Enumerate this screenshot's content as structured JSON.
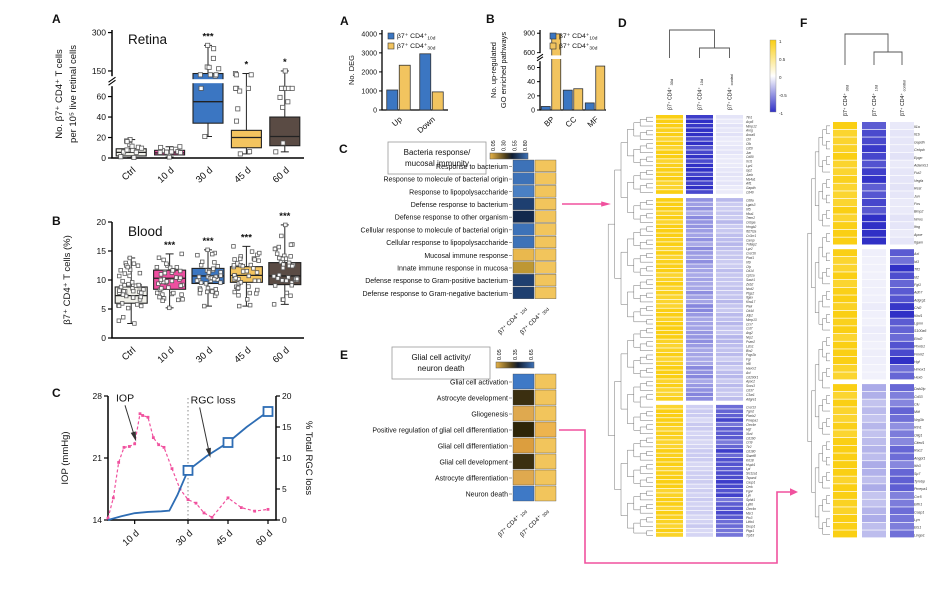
{
  "panels": {
    "left_a": "A",
    "left_b": "B",
    "left_c": "C",
    "mid_a": "A",
    "mid_b": "B",
    "mid_c": "C",
    "mid_e": "E",
    "right_d": "D",
    "right_f": "F"
  },
  "colors": {
    "pink": "#F0519E",
    "blue": "#3B76C2",
    "gold": "#F2C45F",
    "brown": "#5A4B44",
    "ctrl": "#F1F1EA",
    "heat_gold": "#F2C55C",
    "heat_yellow": "#FACF14",
    "heat_blue": "#3030C6",
    "navy_dark": "#1E3F70"
  },
  "chart_data": [
    {
      "id": "retina_box",
      "type": "box",
      "title": "Retina",
      "ylabel": [
        "No. β7⁺ CD4⁺ T cells",
        "per 10⁵ live retinal cells"
      ],
      "categories": [
        "Ctrl",
        "10 d",
        "30 d",
        "45 d",
        "60 d"
      ],
      "box_colors": [
        "#F1F1EA",
        "#EE4FA0",
        "#3B76C2",
        "#F3C45F",
        "#5A4B44"
      ],
      "significance": [
        "",
        "",
        "***",
        "*",
        "*"
      ],
      "y_ticks": [
        0,
        20,
        40,
        60,
        150,
        300
      ],
      "y_segments": [
        {
          "from": 0,
          "to": 70,
          "f0": 0,
          "f1": 0.56
        },
        {
          "from": 130,
          "to": 310,
          "f0": 0.64,
          "f1": 1
        }
      ],
      "axis_break": true,
      "break_cat": 2,
      "boxes": [
        {
          "lo": 0.5,
          "q1": 2,
          "med": 5.5,
          "q3": 9,
          "hi": 18,
          "n": 13
        },
        {
          "lo": 1,
          "q1": 3,
          "med": 5,
          "q3": 7.5,
          "hi": 11,
          "n": 11
        },
        {
          "lo": 21,
          "q1": 34,
          "med": 55,
          "q3": 140,
          "hi": 250,
          "n": 12
        },
        {
          "lo": 4,
          "q1": 10,
          "med": 20,
          "q3": 27,
          "hi": 140,
          "n": 11
        },
        {
          "lo": 6,
          "q1": 12,
          "med": 21,
          "q3": 40,
          "hi": 150,
          "n": 11
        }
      ]
    },
    {
      "id": "blood_box",
      "type": "box",
      "title": "Blood",
      "ylabel": [
        "β7⁺ CD4⁺ T cells (%)"
      ],
      "categories": [
        "Ctrl",
        "10 d",
        "30 d",
        "45 d",
        "60 d"
      ],
      "box_colors": [
        "#F1F1EA",
        "#EE4FA0",
        "#3B76C2",
        "#F3C45F",
        "#5A4B44"
      ],
      "significance": [
        "",
        "***",
        "***",
        "***",
        "***"
      ],
      "y_ticks": [
        0,
        5,
        10,
        15,
        20
      ],
      "y_segments": [
        {
          "from": 0,
          "to": 20,
          "f0": 0,
          "f1": 1
        }
      ],
      "axis_break": false,
      "boxes": [
        {
          "lo": 2.5,
          "q1": 6,
          "med": 7.3,
          "q3": 8.8,
          "hi": 13.8,
          "n": 45
        },
        {
          "lo": 5.2,
          "q1": 8.4,
          "med": 10.3,
          "q3": 11.7,
          "hi": 14.5,
          "n": 42
        },
        {
          "lo": 5.5,
          "q1": 9.4,
          "med": 10.7,
          "q3": 12.0,
          "hi": 15.2,
          "n": 40
        },
        {
          "lo": 5.5,
          "q1": 9.6,
          "med": 10.8,
          "q3": 12.3,
          "hi": 15.8,
          "n": 42
        },
        {
          "lo": 5.8,
          "q1": 9.2,
          "med": 10.7,
          "q3": 13.0,
          "hi": 19.5,
          "n": 40
        }
      ]
    },
    {
      "id": "iop_line",
      "type": "line",
      "left_ylabel": "IOP (mmHg)",
      "right_ylabel": "% Total RGC loss",
      "left_ticks": [
        14,
        21,
        28
      ],
      "right_ticks": [
        0,
        5,
        10,
        15,
        20
      ],
      "left_range": [
        14,
        28
      ],
      "right_range": [
        0,
        20
      ],
      "x_range": [
        0,
        63
      ],
      "vline_x": 30,
      "x_ticks": [
        {
          "x": 10,
          "label": "10 d"
        },
        {
          "x": 30,
          "label": "30 d"
        },
        {
          "x": 45,
          "label": "45 d"
        },
        {
          "x": 60,
          "label": "60 d"
        }
      ],
      "series": [
        {
          "name": "IOP",
          "axis": "left",
          "color": "#F0519E",
          "dash": "3,2.2",
          "points": [
            [
              0,
              14.2
            ],
            [
              2,
              16.5
            ],
            [
              4,
              20.5
            ],
            [
              6,
              22.2
            ],
            [
              8,
              22.3
            ],
            [
              10,
              22.6
            ],
            [
              12,
              26.0
            ],
            [
              13,
              25.8
            ],
            [
              15,
              25.6
            ],
            [
              17,
              23.3
            ],
            [
              19,
              22.5
            ],
            [
              21,
              22.2
            ],
            [
              24,
              19.8
            ],
            [
              27,
              17.5
            ],
            [
              30,
              16.3
            ],
            [
              33,
              15.9
            ],
            [
              36,
              14.8
            ],
            [
              39,
              14.3
            ],
            [
              45,
              16.5
            ],
            [
              50,
              15.4
            ],
            [
              55,
              15.0
            ],
            [
              60,
              15.2
            ]
          ]
        },
        {
          "name": "RGC loss",
          "axis": "right",
          "color": "#2E6DB4",
          "dash": "",
          "points": [
            [
              0,
              0
            ],
            [
              5,
              0.6
            ],
            [
              10,
              1.1
            ],
            [
              15,
              1.3
            ],
            [
              20,
              1.4
            ],
            [
              23,
              1.5
            ],
            [
              26,
              4.0
            ],
            [
              30,
              8.0
            ],
            [
              37,
              10.3
            ],
            [
              45,
              12.5
            ],
            [
              52,
              15.0
            ],
            [
              60,
              17.5
            ]
          ],
          "marker_points": [
            [
              30,
              8.0
            ],
            [
              45,
              12.5
            ],
            [
              60,
              17.5
            ]
          ]
        }
      ],
      "annotations": [
        {
          "text": "IOP",
          "axis": "left",
          "tx": 3,
          "ty": 27.4,
          "ax": 10,
          "ay": 23.4
        },
        {
          "text": "RGC loss",
          "axis": "right",
          "tx": 31,
          "ty": 18.8,
          "ax": 38,
          "ay": 10.8
        }
      ]
    },
    {
      "id": "deg_bar",
      "type": "bar",
      "ylabel": [
        "No. DEG"
      ],
      "categories": [
        "Up",
        "Down"
      ],
      "y_ticks": [
        0,
        1000,
        2000,
        3000,
        4000
      ],
      "y_segments": [
        {
          "from": 0,
          "to": 4200,
          "f0": 0,
          "f1": 1
        }
      ],
      "axis_break": false,
      "series": [
        {
          "base": "β7⁺ CD4⁺",
          "sub": "10d",
          "color": "#3B76C2",
          "values": [
            1050,
            2950
          ]
        },
        {
          "base": "β7⁺ CD4⁺",
          "sub": "30d",
          "color": "#F2C45F",
          "values": [
            2350,
            950
          ]
        }
      ]
    },
    {
      "id": "go_bar",
      "type": "bar",
      "ylabel": [
        "No. up-regulated",
        "GO enriched pathways"
      ],
      "categories": [
        "BP",
        "CC",
        "MF"
      ],
      "y_ticks": [
        0,
        20,
        40,
        60,
        600,
        900
      ],
      "y_segments": [
        {
          "from": 0,
          "to": 70,
          "f0": 0,
          "f1": 0.62
        },
        {
          "from": 580,
          "to": 950,
          "f0": 0.7,
          "f1": 1
        }
      ],
      "axis_break": true,
      "series": [
        {
          "base": "β7⁺ CD4⁺",
          "sub": "10d",
          "color": "#3B76C2",
          "values": [
            5,
            28,
            10
          ]
        },
        {
          "base": "β7⁺ CD4⁺",
          "sub": "30d",
          "color": "#F2C45F",
          "values": [
            890,
            30,
            62
          ]
        }
      ]
    },
    {
      "id": "bacteria_heat",
      "type": "heatmap",
      "title": [
        "Bacteria response/",
        "mucosal immunity"
      ],
      "colorbar": {
        "ticks": [
          "0.05",
          "0.30",
          "0.55",
          "0.80"
        ]
      },
      "columns": [
        {
          "base": "β7⁺ CD4⁺",
          "sub": "10d"
        },
        {
          "base": "β7⁺ CD4⁺",
          "sub": "30d"
        }
      ],
      "rows": [
        {
          "label": "Response to bacterium",
          "colors": [
            "#3D72B8",
            "#F2C55C"
          ]
        },
        {
          "label": "Response to molecule of bacterial origin",
          "colors": [
            "#3D72B8",
            "#F2C55C"
          ]
        },
        {
          "label": "Response to lipopolysaccharide",
          "colors": [
            "#4A80C4",
            "#F2C55C"
          ]
        },
        {
          "label": "Defense response to bacterium",
          "colors": [
            "#1E3F70",
            "#F2C55C"
          ]
        },
        {
          "label": "Defense response to other organism",
          "colors": [
            "#13294D",
            "#F2C55C"
          ]
        },
        {
          "label": "Cellular response to molecule of bacterial origin",
          "colors": [
            "#3D72B8",
            "#F2C55C"
          ]
        },
        {
          "label": "Cellular response to lipopolysaccharide",
          "colors": [
            "#3D72B8",
            "#F2C55C"
          ]
        },
        {
          "label": "Mucosal immune response",
          "colors": [
            "#E9B84E",
            "#F2C55C"
          ]
        },
        {
          "label": "Innate immune response in mucosa",
          "colors": [
            "#BE9733",
            "#F2C55C"
          ]
        },
        {
          "label": "Defense response to Gram-positive bacterium",
          "colors": [
            "#1E3F70",
            "#F2C55C"
          ]
        },
        {
          "label": "Defense response to Gram-negative bacterium",
          "colors": [
            "#1E3F70",
            "#F2C55C"
          ]
        }
      ]
    },
    {
      "id": "glial_heat",
      "type": "heatmap",
      "title": [
        "Glial cell activity/",
        "neuron death"
      ],
      "colorbar": {
        "ticks": [
          "0.05",
          "0.35",
          "0.65"
        ]
      },
      "columns": [
        {
          "base": "β7⁺ CD4⁺",
          "sub": "10d"
        },
        {
          "base": "β7⁺ CD4⁺",
          "sub": "30d"
        }
      ],
      "rows": [
        {
          "label": "Glial cell activation",
          "colors": [
            "#3E79C6",
            "#F2C55C"
          ]
        },
        {
          "label": "Astrocyte development",
          "colors": [
            "#3B2F10",
            "#F2C55C"
          ]
        },
        {
          "label": "Gliogenesis",
          "colors": [
            "#DFA94F",
            "#F2C55C"
          ]
        },
        {
          "label": "Positive regulation of glial cell differentiation",
          "colors": [
            "#2E2508",
            "#EDB44E"
          ]
        },
        {
          "label": "Glial cell differentiation",
          "colors": [
            "#DC9E3E",
            "#F2C55C"
          ]
        },
        {
          "label": "Glial cell development",
          "colors": [
            "#3B2F10",
            "#F2C55C"
          ]
        },
        {
          "label": "Astrocyte differentiation",
          "colors": [
            "#DFA94F",
            "#F2C55C"
          ]
        },
        {
          "label": "Neuron death",
          "colors": [
            "#3E79C6",
            "#F2C55C"
          ]
        }
      ]
    },
    {
      "id": "heat_d",
      "type": "gene-heatmap",
      "columns": [
        {
          "base": "β7⁺ CD4⁺",
          "sub": "30d"
        },
        {
          "base": "β7⁺ CD4⁺",
          "sub": "10d"
        },
        {
          "base": "β7⁺ CD4⁺",
          "sub": "control"
        }
      ],
      "colorbar": {
        "ticks": [
          "1",
          "0.5",
          "0",
          "-0.5",
          "-1"
        ]
      },
      "blocks": [
        {
          "values": [
            0.95,
            -1,
            -0.12
          ],
          "genes": [
            "Tln1",
            "Acp5",
            "Mmp12",
            "Areg",
            "Anxa5",
            "Ctrl",
            "Cfb",
            "Cd5l",
            "Jun",
            "Cd80",
            "Xcl1",
            "Lyz1",
            "Gp2",
            "Junb",
            "Ms4a1",
            "Aif1",
            "Gapdh",
            "Cd40"
          ]
        },
        {
          "values": [
            0.95,
            -0.5,
            -0.3
          ],
          "genes": [
            "Cd8a",
            "Lgals3",
            "Irf5",
            "Hba1",
            "Trem2",
            "Cebpa",
            "Hmgb2",
            "Ifi27l2a",
            "Cx3cr1",
            "Camp",
            "Tnfaip2",
            "Lyz2",
            "Cxcl16",
            "Plcd1",
            "Irf9",
            "Cfp",
            "Cd14",
            "Cpt1a",
            "Sash1",
            "Zeb2",
            "Nod2",
            "Ptgs2",
            "Itgax",
            "Klra17",
            "Plek",
            "Cd44",
            "Jdp2",
            "Mmp13",
            "Ccr7",
            "Cst7",
            "Arg2",
            "Nrp2",
            "Psen2",
            "Lzts1",
            "Bin2",
            "Fcgr2b",
            "Fgr",
            "Irf8",
            "Havcr2",
            "Axl",
            "Cd200r1",
            "Apoc2",
            "Socs3",
            "Cd37",
            "C3ar1",
            "Adgre1"
          ]
        },
        {
          "values": [
            0.95,
            -0.22,
            -0.78
          ],
          "genes": [
            "Cxcl13",
            "Tgm2",
            "Plxnb2",
            "Pmepa1",
            "Clec4e",
            "Hgf",
            "Xkr4",
            "Cd160",
            "Ccl9",
            "Tlr2",
            "Cd180",
            "Slamf8",
            "Krt18",
            "Hspb1",
            "Lpl",
            "Slc11a1",
            "Tspan4",
            "Casp1",
            "Cerk",
            "Fgr4",
            "Lyn",
            "Sphk1",
            "Ly86",
            "Clec4n",
            "Msr1",
            "Ptx3",
            "Lilrb4",
            "Dusp1",
            "Ptgs1",
            "Trp53"
          ]
        }
      ]
    },
    {
      "id": "heat_f",
      "type": "gene-heatmap",
      "columns": [
        {
          "base": "β7⁺ CD4⁺",
          "sub": "30d"
        },
        {
          "base": "β7⁺ CD4⁺",
          "sub": "10d"
        },
        {
          "base": "β7⁺ CD4⁺",
          "sub": "control"
        }
      ],
      "colorbar": null,
      "blocks": [
        {
          "values": [
            0.95,
            -0.9,
            -0.12
          ],
          "genes": [
            "Il1a",
            "Il1b",
            "Gapdh",
            "Cebpb",
            "Epgn",
            "Adamts1",
            "Fut2",
            "Vegfa",
            "Rest",
            "Jun",
            "Fos",
            "Bmp2",
            "Nrros",
            "Ifng",
            "Apoe",
            "Itgam"
          ]
        },
        {
          "values": [
            0.95,
            -0.08,
            -0.85
          ],
          "genes": [
            "Axl",
            "Id3",
            "Tlf1",
            "Id2",
            "Fgl1",
            "Adh7",
            "Adgrg1",
            "Chl2",
            "Klrd1",
            "Lgmn",
            "S100a6",
            "Ehd2",
            "Plxnb1",
            "Fmnl2",
            "Hgf",
            "Hmox1",
            "Hexb"
          ]
        },
        {
          "values": [
            0.95,
            -0.35,
            -0.65
          ],
          "genes": [
            "Dab2ip",
            "Cd33",
            "Clu",
            "Mitf",
            "Nrg3b",
            "Rtn1",
            "Olig1",
            "Cited1",
            "Rac2",
            "Angpt1",
            "Itih3",
            "Sp7",
            "Tyrobp",
            "Pmepa1",
            "Ccr5",
            "Elfn1",
            "Casp1",
            "Lyn",
            "Ets1",
            "Lingo1"
          ]
        }
      ]
    }
  ]
}
